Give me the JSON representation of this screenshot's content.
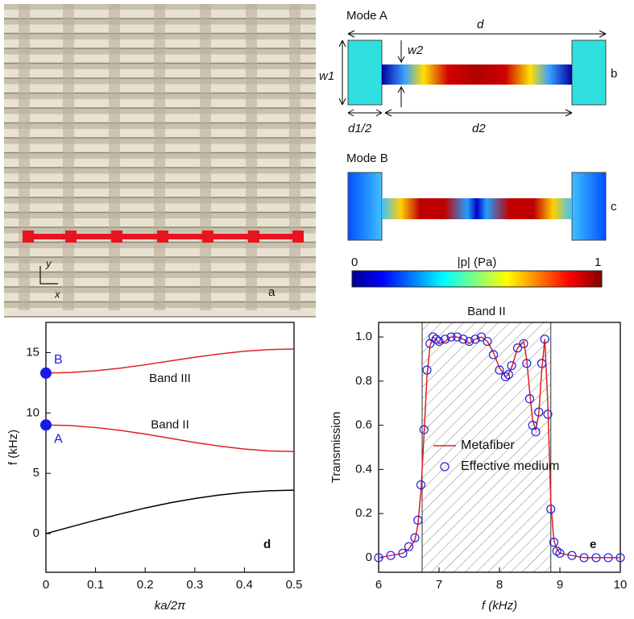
{
  "panel_a": {
    "label": "a",
    "x_axis": "x",
    "y_axis": "y"
  },
  "mode_a": {
    "title": "Mode A",
    "label": "b",
    "d": "d",
    "w1": "w1",
    "w2": "w2",
    "d1_half": "d1/2",
    "d2": "d2"
  },
  "mode_b": {
    "title": "Mode B",
    "label": "c"
  },
  "colorbar": {
    "min": 0,
    "max": 1,
    "label": "|p| (Pa)"
  },
  "chart_data": [
    {
      "type": "line",
      "panel_label": "d",
      "xlabel": "ka/2π",
      "ylabel": "f (kHz)",
      "x": [
        0,
        0.05,
        0.1,
        0.15,
        0.2,
        0.25,
        0.3,
        0.35,
        0.4,
        0.45,
        0.5
      ],
      "series": [
        {
          "color": "#000000",
          "values": [
            0,
            0.56,
            1.11,
            1.63,
            2.12,
            2.55,
            2.91,
            3.2,
            3.42,
            3.55,
            3.6
          ]
        },
        {
          "name": "Band II",
          "color": "#e02020",
          "values": [
            9,
            8.95,
            8.79,
            8.55,
            8.25,
            7.9,
            7.55,
            7.25,
            7.01,
            6.85,
            6.8
          ]
        },
        {
          "name": "Band III",
          "color": "#e02020",
          "values": [
            13.3,
            13.35,
            13.49,
            13.71,
            13.99,
            14.3,
            14.61,
            14.89,
            15.11,
            15.25,
            15.3
          ]
        }
      ],
      "points": [
        {
          "label": "A",
          "x": 0,
          "y": 9,
          "color": "#1a1ae6"
        },
        {
          "label": "B",
          "x": 0,
          "y": 13.3,
          "color": "#1a1ae6"
        }
      ],
      "xlim": [
        0,
        0.5
      ],
      "xticks": [
        0,
        0.1,
        0.2,
        0.3,
        0.4,
        0.5
      ],
      "ylim": [
        -3.2,
        17.5
      ],
      "yticks": [
        0,
        5,
        10,
        15
      ]
    },
    {
      "type": "line",
      "panel_label": "e",
      "xlabel": "f (kHz)",
      "ylabel": "Transmission",
      "shaded": {
        "label": "Band II",
        "x": [
          6.72,
          8.85
        ]
      },
      "x": [
        6.0,
        6.2,
        6.4,
        6.5,
        6.6,
        6.65,
        6.7,
        6.75,
        6.8,
        6.85,
        6.9,
        6.95,
        7.0,
        7.1,
        7.2,
        7.3,
        7.4,
        7.5,
        7.6,
        7.7,
        7.8,
        7.9,
        8.0,
        8.1,
        8.15,
        8.2,
        8.3,
        8.4,
        8.45,
        8.5,
        8.55,
        8.6,
        8.65,
        8.7,
        8.75,
        8.8,
        8.85,
        8.9,
        8.95,
        9.0,
        9.2,
        9.4,
        9.6,
        9.8,
        10.0
      ],
      "series": [
        {
          "name": "Metafiber",
          "color": "#e02020",
          "style": "line",
          "values": [
            0,
            0.01,
            0.02,
            0.04,
            0.08,
            0.15,
            0.3,
            0.55,
            0.82,
            0.96,
            1.0,
            0.99,
            0.97,
            0.98,
            1.0,
            1.0,
            0.99,
            0.97,
            0.99,
            1.0,
            0.98,
            0.93,
            0.86,
            0.82,
            0.83,
            0.86,
            0.95,
            0.98,
            0.9,
            0.75,
            0.62,
            0.58,
            0.65,
            0.85,
            0.99,
            0.7,
            0.25,
            0.08,
            0.04,
            0.02,
            0.01,
            0,
            0,
            0,
            0
          ]
        },
        {
          "name": "Effective medium",
          "color": "#2020e0",
          "style": "markers",
          "values": [
            0,
            0.01,
            0.02,
            0.05,
            0.09,
            0.17,
            0.33,
            0.58,
            0.85,
            0.97,
            1.0,
            0.99,
            0.98,
            0.99,
            1.0,
            1.0,
            0.99,
            0.98,
            0.99,
            1.0,
            0.98,
            0.92,
            0.85,
            0.82,
            0.83,
            0.87,
            0.95,
            0.97,
            0.88,
            0.72,
            0.6,
            0.57,
            0.66,
            0.88,
            0.99,
            0.65,
            0.22,
            0.07,
            0.03,
            0.02,
            0.01,
            0,
            0,
            0,
            0
          ]
        }
      ],
      "legend": "center",
      "xlim": [
        6,
        10
      ],
      "xticks": [
        6,
        7,
        8,
        9,
        10
      ],
      "ylim": [
        -0.066,
        1.066
      ],
      "yticks": [
        0,
        0.2,
        0.4,
        0.6,
        0.8,
        {
          "value": 1,
          "label": "1.0"
        }
      ]
    }
  ]
}
